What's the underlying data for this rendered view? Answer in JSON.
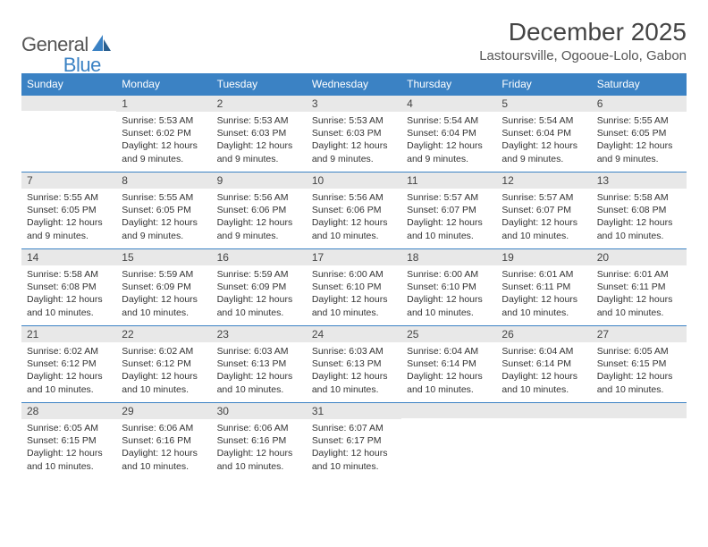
{
  "logo": {
    "text1": "General",
    "text2": "Blue"
  },
  "title": "December 2025",
  "location": "Lastoursville, Ogooue-Lolo, Gabon",
  "colors": {
    "header_bg": "#3b82c4",
    "header_text": "#ffffff",
    "dayhead_bg": "#e8e8e8",
    "dayhead_border": "#3b82c4",
    "page_bg": "#ffffff",
    "text": "#333333"
  },
  "day_names": [
    "Sunday",
    "Monday",
    "Tuesday",
    "Wednesday",
    "Thursday",
    "Friday",
    "Saturday"
  ],
  "weeks": [
    [
      null,
      {
        "n": "1",
        "sr": "Sunrise: 5:53 AM",
        "ss": "Sunset: 6:02 PM",
        "d1": "Daylight: 12 hours",
        "d2": "and 9 minutes."
      },
      {
        "n": "2",
        "sr": "Sunrise: 5:53 AM",
        "ss": "Sunset: 6:03 PM",
        "d1": "Daylight: 12 hours",
        "d2": "and 9 minutes."
      },
      {
        "n": "3",
        "sr": "Sunrise: 5:53 AM",
        "ss": "Sunset: 6:03 PM",
        "d1": "Daylight: 12 hours",
        "d2": "and 9 minutes."
      },
      {
        "n": "4",
        "sr": "Sunrise: 5:54 AM",
        "ss": "Sunset: 6:04 PM",
        "d1": "Daylight: 12 hours",
        "d2": "and 9 minutes."
      },
      {
        "n": "5",
        "sr": "Sunrise: 5:54 AM",
        "ss": "Sunset: 6:04 PM",
        "d1": "Daylight: 12 hours",
        "d2": "and 9 minutes."
      },
      {
        "n": "6",
        "sr": "Sunrise: 5:55 AM",
        "ss": "Sunset: 6:05 PM",
        "d1": "Daylight: 12 hours",
        "d2": "and 9 minutes."
      }
    ],
    [
      {
        "n": "7",
        "sr": "Sunrise: 5:55 AM",
        "ss": "Sunset: 6:05 PM",
        "d1": "Daylight: 12 hours",
        "d2": "and 9 minutes."
      },
      {
        "n": "8",
        "sr": "Sunrise: 5:55 AM",
        "ss": "Sunset: 6:05 PM",
        "d1": "Daylight: 12 hours",
        "d2": "and 9 minutes."
      },
      {
        "n": "9",
        "sr": "Sunrise: 5:56 AM",
        "ss": "Sunset: 6:06 PM",
        "d1": "Daylight: 12 hours",
        "d2": "and 9 minutes."
      },
      {
        "n": "10",
        "sr": "Sunrise: 5:56 AM",
        "ss": "Sunset: 6:06 PM",
        "d1": "Daylight: 12 hours",
        "d2": "and 10 minutes."
      },
      {
        "n": "11",
        "sr": "Sunrise: 5:57 AM",
        "ss": "Sunset: 6:07 PM",
        "d1": "Daylight: 12 hours",
        "d2": "and 10 minutes."
      },
      {
        "n": "12",
        "sr": "Sunrise: 5:57 AM",
        "ss": "Sunset: 6:07 PM",
        "d1": "Daylight: 12 hours",
        "d2": "and 10 minutes."
      },
      {
        "n": "13",
        "sr": "Sunrise: 5:58 AM",
        "ss": "Sunset: 6:08 PM",
        "d1": "Daylight: 12 hours",
        "d2": "and 10 minutes."
      }
    ],
    [
      {
        "n": "14",
        "sr": "Sunrise: 5:58 AM",
        "ss": "Sunset: 6:08 PM",
        "d1": "Daylight: 12 hours",
        "d2": "and 10 minutes."
      },
      {
        "n": "15",
        "sr": "Sunrise: 5:59 AM",
        "ss": "Sunset: 6:09 PM",
        "d1": "Daylight: 12 hours",
        "d2": "and 10 minutes."
      },
      {
        "n": "16",
        "sr": "Sunrise: 5:59 AM",
        "ss": "Sunset: 6:09 PM",
        "d1": "Daylight: 12 hours",
        "d2": "and 10 minutes."
      },
      {
        "n": "17",
        "sr": "Sunrise: 6:00 AM",
        "ss": "Sunset: 6:10 PM",
        "d1": "Daylight: 12 hours",
        "d2": "and 10 minutes."
      },
      {
        "n": "18",
        "sr": "Sunrise: 6:00 AM",
        "ss": "Sunset: 6:10 PM",
        "d1": "Daylight: 12 hours",
        "d2": "and 10 minutes."
      },
      {
        "n": "19",
        "sr": "Sunrise: 6:01 AM",
        "ss": "Sunset: 6:11 PM",
        "d1": "Daylight: 12 hours",
        "d2": "and 10 minutes."
      },
      {
        "n": "20",
        "sr": "Sunrise: 6:01 AM",
        "ss": "Sunset: 6:11 PM",
        "d1": "Daylight: 12 hours",
        "d2": "and 10 minutes."
      }
    ],
    [
      {
        "n": "21",
        "sr": "Sunrise: 6:02 AM",
        "ss": "Sunset: 6:12 PM",
        "d1": "Daylight: 12 hours",
        "d2": "and 10 minutes."
      },
      {
        "n": "22",
        "sr": "Sunrise: 6:02 AM",
        "ss": "Sunset: 6:12 PM",
        "d1": "Daylight: 12 hours",
        "d2": "and 10 minutes."
      },
      {
        "n": "23",
        "sr": "Sunrise: 6:03 AM",
        "ss": "Sunset: 6:13 PM",
        "d1": "Daylight: 12 hours",
        "d2": "and 10 minutes."
      },
      {
        "n": "24",
        "sr": "Sunrise: 6:03 AM",
        "ss": "Sunset: 6:13 PM",
        "d1": "Daylight: 12 hours",
        "d2": "and 10 minutes."
      },
      {
        "n": "25",
        "sr": "Sunrise: 6:04 AM",
        "ss": "Sunset: 6:14 PM",
        "d1": "Daylight: 12 hours",
        "d2": "and 10 minutes."
      },
      {
        "n": "26",
        "sr": "Sunrise: 6:04 AM",
        "ss": "Sunset: 6:14 PM",
        "d1": "Daylight: 12 hours",
        "d2": "and 10 minutes."
      },
      {
        "n": "27",
        "sr": "Sunrise: 6:05 AM",
        "ss": "Sunset: 6:15 PM",
        "d1": "Daylight: 12 hours",
        "d2": "and 10 minutes."
      }
    ],
    [
      {
        "n": "28",
        "sr": "Sunrise: 6:05 AM",
        "ss": "Sunset: 6:15 PM",
        "d1": "Daylight: 12 hours",
        "d2": "and 10 minutes."
      },
      {
        "n": "29",
        "sr": "Sunrise: 6:06 AM",
        "ss": "Sunset: 6:16 PM",
        "d1": "Daylight: 12 hours",
        "d2": "and 10 minutes."
      },
      {
        "n": "30",
        "sr": "Sunrise: 6:06 AM",
        "ss": "Sunset: 6:16 PM",
        "d1": "Daylight: 12 hours",
        "d2": "and 10 minutes."
      },
      {
        "n": "31",
        "sr": "Sunrise: 6:07 AM",
        "ss": "Sunset: 6:17 PM",
        "d1": "Daylight: 12 hours",
        "d2": "and 10 minutes."
      },
      null,
      null,
      null
    ]
  ]
}
